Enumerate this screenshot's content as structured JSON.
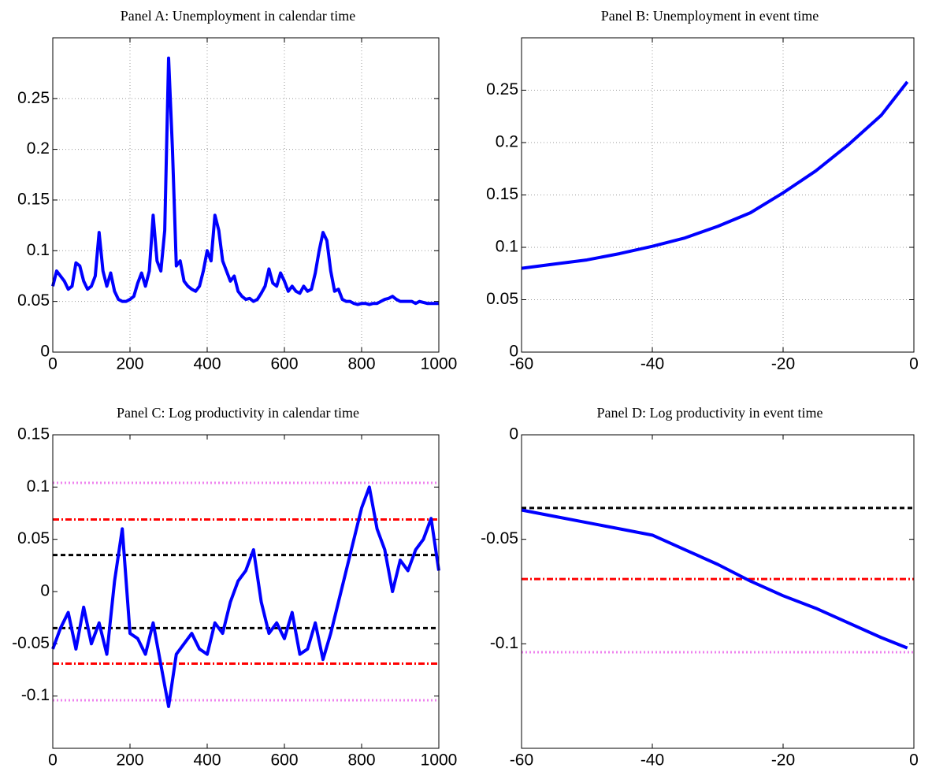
{
  "chart_data": [
    {
      "type": "line",
      "title": "Panel A: Unemployment in calendar time",
      "color": "#0000ff",
      "grid": true,
      "xlim": [
        0,
        1000
      ],
      "xticks": [
        0,
        200,
        400,
        600,
        800,
        1000
      ],
      "ylim": [
        0,
        0.31
      ],
      "yticks": [
        0,
        0.05,
        0.1,
        0.15,
        0.2,
        0.25
      ],
      "x": [
        0,
        10,
        20,
        30,
        40,
        50,
        60,
        70,
        80,
        90,
        100,
        110,
        120,
        130,
        140,
        150,
        160,
        170,
        180,
        190,
        200,
        210,
        220,
        230,
        240,
        250,
        260,
        270,
        280,
        290,
        300,
        310,
        320,
        330,
        340,
        350,
        360,
        370,
        380,
        390,
        400,
        410,
        420,
        430,
        440,
        450,
        460,
        470,
        480,
        490,
        500,
        510,
        520,
        530,
        540,
        550,
        560,
        570,
        580,
        590,
        600,
        610,
        620,
        630,
        640,
        650,
        660,
        670,
        680,
        690,
        700,
        710,
        720,
        730,
        740,
        750,
        760,
        770,
        780,
        790,
        800,
        810,
        820,
        830,
        840,
        850,
        860,
        870,
        880,
        890,
        900,
        910,
        920,
        930,
        940,
        950,
        960,
        970,
        980,
        990,
        1000
      ],
      "values": [
        0.065,
        0.08,
        0.075,
        0.07,
        0.062,
        0.065,
        0.088,
        0.085,
        0.07,
        0.062,
        0.065,
        0.075,
        0.118,
        0.08,
        0.065,
        0.078,
        0.06,
        0.052,
        0.05,
        0.05,
        0.052,
        0.055,
        0.068,
        0.078,
        0.065,
        0.08,
        0.135,
        0.09,
        0.08,
        0.12,
        0.29,
        0.2,
        0.085,
        0.09,
        0.07,
        0.065,
        0.062,
        0.06,
        0.065,
        0.08,
        0.1,
        0.09,
        0.135,
        0.12,
        0.09,
        0.08,
        0.07,
        0.075,
        0.06,
        0.055,
        0.052,
        0.053,
        0.05,
        0.052,
        0.058,
        0.065,
        0.082,
        0.068,
        0.065,
        0.078,
        0.07,
        0.06,
        0.065,
        0.06,
        0.058,
        0.065,
        0.06,
        0.062,
        0.078,
        0.1,
        0.118,
        0.11,
        0.08,
        0.06,
        0.062,
        0.052,
        0.05,
        0.05,
        0.048,
        0.047,
        0.048,
        0.048,
        0.047,
        0.048,
        0.048,
        0.05,
        0.052,
        0.053,
        0.055,
        0.052,
        0.05,
        0.05,
        0.05,
        0.05,
        0.048,
        0.05,
        0.049,
        0.048,
        0.048,
        0.048,
        0.048
      ]
    },
    {
      "type": "line",
      "title": "Panel B: Unemployment in event time",
      "color": "#0000ff",
      "grid": true,
      "xlim": [
        -60,
        0
      ],
      "xticks": [
        -60,
        -40,
        -20,
        0
      ],
      "ylim": [
        0,
        0.3
      ],
      "yticks": [
        0,
        0.05,
        0.1,
        0.15,
        0.2,
        0.25
      ],
      "x": [
        -60,
        -55,
        -50,
        -45,
        -40,
        -35,
        -30,
        -25,
        -20,
        -15,
        -10,
        -5,
        -1
      ],
      "values": [
        0.08,
        0.084,
        0.088,
        0.094,
        0.101,
        0.109,
        0.12,
        0.133,
        0.152,
        0.173,
        0.198,
        0.226,
        0.258
      ]
    },
    {
      "type": "line",
      "title": "Panel C: Log productivity in calendar time",
      "color": "#0000ff",
      "grid": false,
      "xlim": [
        0,
        1000
      ],
      "xticks": [
        0,
        200,
        400,
        600,
        800,
        1000
      ],
      "ylim": [
        -0.15,
        0.15
      ],
      "yticks": [
        -0.1,
        -0.05,
        0,
        0.05,
        0.1,
        0.15
      ],
      "hlines": [
        {
          "value": 0.104,
          "color": "#ee82ee",
          "style": "dotted"
        },
        {
          "value": -0.104,
          "color": "#ee82ee",
          "style": "dotted"
        },
        {
          "value": 0.069,
          "color": "#ff0000",
          "style": "dashdot"
        },
        {
          "value": -0.069,
          "color": "#ff0000",
          "style": "dashdot"
        },
        {
          "value": 0.035,
          "color": "#000000",
          "style": "dashed"
        },
        {
          "value": -0.035,
          "color": "#000000",
          "style": "dashed"
        }
      ],
      "x": [
        0,
        20,
        40,
        60,
        80,
        100,
        120,
        140,
        160,
        180,
        200,
        220,
        240,
        260,
        280,
        300,
        320,
        340,
        360,
        380,
        400,
        420,
        440,
        460,
        480,
        500,
        520,
        540,
        560,
        580,
        600,
        620,
        640,
        660,
        680,
        700,
        720,
        740,
        760,
        780,
        800,
        820,
        840,
        860,
        880,
        900,
        920,
        940,
        960,
        980,
        1000
      ],
      "values": [
        -0.055,
        -0.035,
        -0.02,
        -0.055,
        -0.015,
        -0.05,
        -0.03,
        -0.06,
        0.01,
        0.06,
        -0.04,
        -0.045,
        -0.06,
        -0.03,
        -0.07,
        -0.11,
        -0.06,
        -0.05,
        -0.04,
        -0.055,
        -0.06,
        -0.03,
        -0.04,
        -0.01,
        0.01,
        0.02,
        0.04,
        -0.01,
        -0.04,
        -0.03,
        -0.045,
        -0.02,
        -0.06,
        -0.055,
        -0.03,
        -0.065,
        -0.04,
        -0.01,
        0.02,
        0.05,
        0.08,
        0.1,
        0.06,
        0.04,
        0.0,
        0.03,
        0.02,
        0.04,
        0.05,
        0.07,
        0.02
      ]
    },
    {
      "type": "line",
      "title": "Panel D: Log productivity in event time",
      "color": "#0000ff",
      "grid": false,
      "xlim": [
        -60,
        0
      ],
      "xticks": [
        -60,
        -40,
        -20,
        0
      ],
      "ylim": [
        -0.15,
        0
      ],
      "yticks": [
        -0.1,
        -0.05,
        0
      ],
      "hlines": [
        {
          "value": -0.035,
          "color": "#000000",
          "style": "dashed"
        },
        {
          "value": -0.069,
          "color": "#ff0000",
          "style": "dashdot"
        },
        {
          "value": -0.104,
          "color": "#ee82ee",
          "style": "dotted"
        }
      ],
      "x": [
        -60,
        -55,
        -50,
        -45,
        -40,
        -35,
        -30,
        -25,
        -20,
        -15,
        -10,
        -5,
        -1
      ],
      "values": [
        -0.036,
        -0.039,
        -0.042,
        -0.045,
        -0.048,
        -0.055,
        -0.062,
        -0.07,
        -0.077,
        -0.083,
        -0.09,
        -0.097,
        -0.102
      ]
    }
  ]
}
